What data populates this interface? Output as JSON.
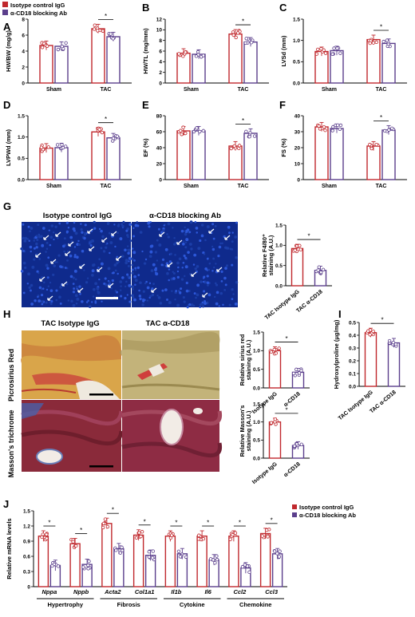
{
  "legend": {
    "isotype": "Isotype control IgG",
    "cd18": "α-CD18 blocking Ab"
  },
  "colors": {
    "isotype": "#c0282d",
    "cd18": "#5b3f8c",
    "nuclei": "#1a3fb0",
    "picrosirius": "#c8952a",
    "massons": "#7a1f2e"
  },
  "panels": {
    "A": "A",
    "B": "B",
    "C": "C",
    "D": "D",
    "E": "E",
    "F": "F",
    "G": "G",
    "H": "H",
    "I": "I",
    "J": "J"
  },
  "panel_g": {
    "image_left_title": "Isotype control IgG",
    "image_right_title": "α-CD18 blocking Ab"
  },
  "panel_h": {
    "col_left_title": "TAC Isotype IgG",
    "col_right_title": "TAC α-CD18",
    "row_top_label": "Picrosirius Red",
    "row_bottom_label": "Masson's trichrome"
  },
  "panel_j": {
    "groups": [
      "Hypertrophy",
      "Fibrosis",
      "Cytokine",
      "Chemokine"
    ]
  },
  "chart_data": [
    {
      "id": "A",
      "type": "bar",
      "ylabel": "HW/BW (mg/g)",
      "ylim": [
        0,
        8
      ],
      "yticks": [
        "0",
        "2",
        "4",
        "6",
        "8"
      ],
      "categories": [
        "Sham",
        "TAC"
      ],
      "series": [
        {
          "name": "Isotype control IgG",
          "values": [
            4.7,
            6.8
          ]
        },
        {
          "name": "α-CD18 blocking Ab",
          "values": [
            4.6,
            5.8
          ]
        }
      ],
      "significance": [
        "*"
      ]
    },
    {
      "id": "B",
      "type": "bar",
      "ylabel": "HW/TL (mg/mm)",
      "ylim": [
        0,
        12
      ],
      "yticks": [
        "0",
        "2",
        "4",
        "6",
        "8",
        "10",
        "12"
      ],
      "categories": [
        "Sham",
        "TAC"
      ],
      "series": [
        {
          "name": "Isotype control IgG",
          "values": [
            5.6,
            9.2
          ]
        },
        {
          "name": "α-CD18 blocking Ab",
          "values": [
            5.4,
            7.7
          ]
        }
      ],
      "significance": [
        "*"
      ]
    },
    {
      "id": "C",
      "type": "bar",
      "ylabel": "LVSd (mm)",
      "ylim": [
        0,
        1.5
      ],
      "yticks": [
        "0.0",
        "0.5",
        "1.0",
        "1.5"
      ],
      "categories": [
        "Sham",
        "TAC"
      ],
      "series": [
        {
          "name": "Isotype control IgG",
          "values": [
            0.74,
            1.02
          ]
        },
        {
          "name": "α-CD18 blocking Ab",
          "values": [
            0.76,
            0.93
          ]
        }
      ],
      "significance": [
        "*"
      ]
    },
    {
      "id": "D",
      "type": "bar",
      "ylabel": "LVPWd (mm)",
      "ylim": [
        0,
        1.5
      ],
      "yticks": [
        "0.0",
        "0.5",
        "1.0",
        "1.5"
      ],
      "categories": [
        "Sham",
        "TAC"
      ],
      "series": [
        {
          "name": "Isotype control IgG",
          "values": [
            0.74,
            1.12
          ]
        },
        {
          "name": "α-CD18 blocking Ab",
          "values": [
            0.75,
            0.98
          ]
        }
      ],
      "significance": [
        "*"
      ]
    },
    {
      "id": "E",
      "type": "bar",
      "ylabel": "EF (%)",
      "ylim": [
        0,
        80
      ],
      "yticks": [
        "0",
        "20",
        "40",
        "60",
        "80"
      ],
      "categories": [
        "Sham",
        "TAC"
      ],
      "series": [
        {
          "name": "Isotype control IgG",
          "values": [
            61,
            42
          ]
        },
        {
          "name": "α-CD18 blocking Ab",
          "values": [
            61,
            58
          ]
        }
      ],
      "significance": [
        "*"
      ]
    },
    {
      "id": "F",
      "type": "bar",
      "ylabel": "FS (%)",
      "ylim": [
        0,
        40
      ],
      "yticks": [
        "0",
        "10",
        "20",
        "30",
        "40"
      ],
      "categories": [
        "Sham",
        "TAC"
      ],
      "series": [
        {
          "name": "Isotype control IgG",
          "values": [
            33,
            21
          ]
        },
        {
          "name": "α-CD18 blocking Ab",
          "values": [
            32,
            31
          ]
        }
      ],
      "significance": [
        "*"
      ]
    },
    {
      "id": "G",
      "type": "bar",
      "ylabel": "Relative F4/80+ staining (A.U.)",
      "ylim": [
        0,
        1.5
      ],
      "yticks": [
        "0.0",
        "0.5",
        "1.0",
        "1.5"
      ],
      "categories": [
        "TAC Isotype IgG",
        "TAC α-CD18"
      ],
      "values": [
        0.92,
        0.38
      ],
      "significance": [
        "*"
      ]
    },
    {
      "id": "H1",
      "type": "bar",
      "ylabel": "Relative sirius red staining (A.U.)",
      "ylim": [
        0,
        1.5
      ],
      "yticks": [
        "0.0",
        "0.5",
        "1.0",
        "1.5"
      ],
      "categories": [
        "Isotype IgG",
        "α-CD18"
      ],
      "values": [
        1.0,
        0.42
      ],
      "significance": [
        "*"
      ]
    },
    {
      "id": "H2",
      "type": "bar",
      "ylabel": "Relative Masson's staining (A.U.)",
      "ylim": [
        0,
        1.5
      ],
      "yticks": [
        "0.0",
        "0.5",
        "1.0",
        "1.5"
      ],
      "categories": [
        "Isotype IgG",
        "α-CD18"
      ],
      "values": [
        1.0,
        0.35
      ],
      "significance": [
        "*"
      ]
    },
    {
      "id": "I",
      "type": "bar",
      "ylabel": "Hydroxylproline (μg/mg)",
      "ylim": [
        0,
        0.5
      ],
      "yticks": [
        "0.0",
        "0.1",
        "0.2",
        "0.3",
        "0.4",
        "0.5"
      ],
      "categories": [
        "TAC Isotype IgG",
        "TAC α-CD18"
      ],
      "values": [
        0.42,
        0.34
      ],
      "significance": [
        "*"
      ]
    },
    {
      "id": "J",
      "type": "bar",
      "ylabel": "Relative mRNA levels",
      "ylim": [
        0,
        1.5
      ],
      "yticks": [
        "0",
        "0.3",
        "0.6",
        "0.9",
        "1.2",
        "1.5"
      ],
      "categories": [
        "Nppa",
        "Nppb",
        "Acta2",
        "Col1a1",
        "Il1b",
        "Il6",
        "Ccl2",
        "Ccl3"
      ],
      "series": [
        {
          "name": "Isotype control IgG",
          "values": [
            1.0,
            0.85,
            1.25,
            1.02,
            1.0,
            1.0,
            1.0,
            1.05
          ]
        },
        {
          "name": "α-CD18 blocking Ab",
          "values": [
            0.42,
            0.44,
            0.75,
            0.62,
            0.65,
            0.53,
            0.37,
            0.65
          ]
        }
      ],
      "significance": [
        "*",
        "*",
        "*",
        "*",
        "*",
        "*",
        "*",
        "*"
      ]
    }
  ]
}
